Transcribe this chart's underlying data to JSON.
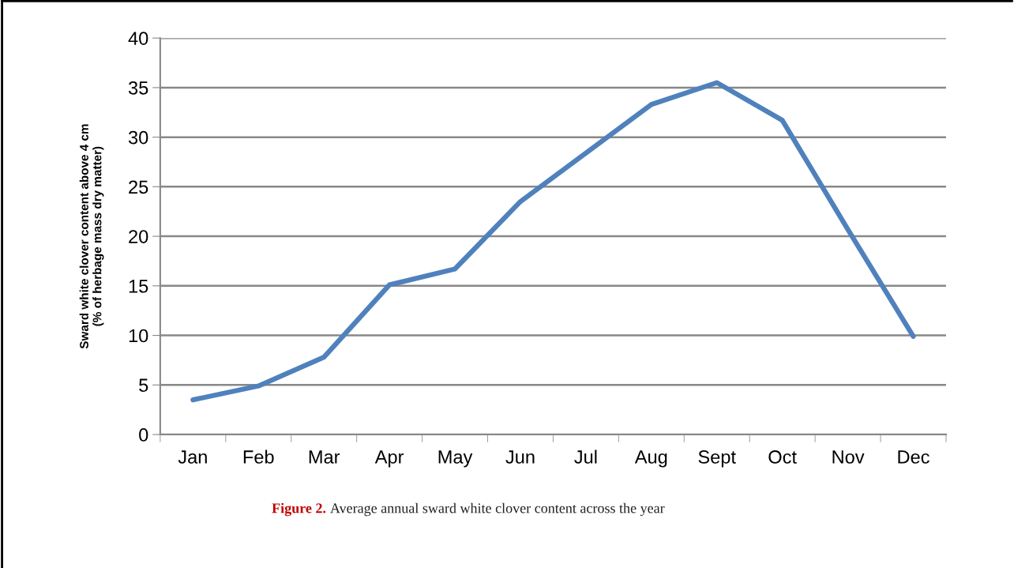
{
  "chart_data": {
    "type": "line",
    "ylabel": "Sward white clover content above 4 cm\n(% of herbage mass dry matter)",
    "categories": [
      "Jan",
      "Feb",
      "Mar",
      "Apr",
      "May",
      "Jun",
      "Jul",
      "Aug",
      "Sept",
      "Oct",
      "Nov",
      "Dec"
    ],
    "series": [
      {
        "color": "#4f81bd",
        "values": [
          3.5,
          4.9,
          7.8,
          15.1,
          16.7,
          23.5,
          28.4,
          33.3,
          35.5,
          31.7,
          20.7,
          9.9
        ]
      }
    ],
    "ylim": [
      0,
      40
    ],
    "yticks": [
      0,
      5,
      10,
      15,
      20,
      25,
      30,
      35,
      40
    ],
    "grid": "y",
    "legend": false,
    "marker": "none",
    "line_style": "solid",
    "annotations": [
      "Figure 2.",
      "Average annual sward white clover content across the year"
    ]
  }
}
